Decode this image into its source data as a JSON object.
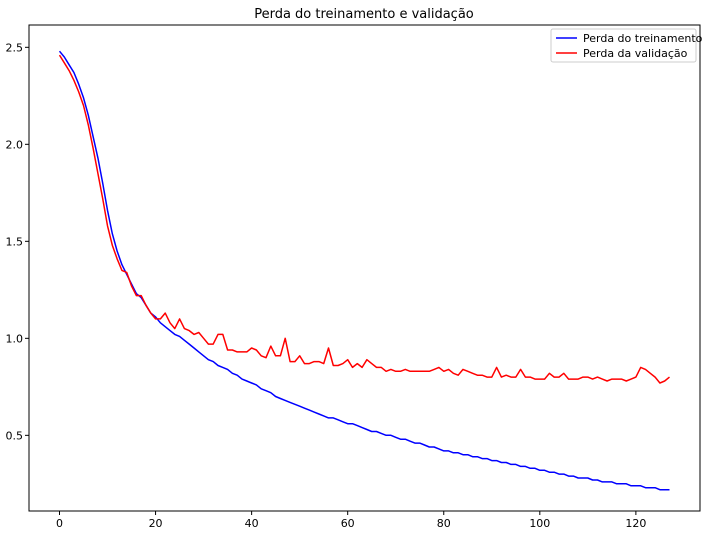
{
  "chart_data": {
    "type": "line",
    "title": "Perda do treinamento e validação",
    "xlabel": "",
    "ylabel": "",
    "xlim": [
      -6.35,
      133.35
    ],
    "ylim": [
      0.11,
      2.615
    ],
    "xticks": [
      0,
      20,
      40,
      60,
      80,
      100,
      120
    ],
    "yticks": [
      0.5,
      1.0,
      1.5,
      2.0,
      2.5
    ],
    "ytick_labels": [
      "0.5",
      "1.0",
      "1.5",
      "2.0",
      "2.5"
    ],
    "grid": false,
    "legend_position": "top-right",
    "series": [
      {
        "name": "Perda do treinamento",
        "color": "#0000ff",
        "x": [
          0,
          1,
          2,
          3,
          4,
          5,
          6,
          7,
          8,
          9,
          10,
          11,
          12,
          13,
          14,
          15,
          16,
          17,
          18,
          19,
          20,
          21,
          22,
          23,
          24,
          25,
          26,
          27,
          28,
          29,
          30,
          31,
          32,
          33,
          34,
          35,
          36,
          37,
          38,
          39,
          40,
          41,
          42,
          43,
          44,
          45,
          46,
          47,
          48,
          49,
          50,
          51,
          52,
          53,
          54,
          55,
          56,
          57,
          58,
          59,
          60,
          61,
          62,
          63,
          64,
          65,
          66,
          67,
          68,
          69,
          70,
          71,
          72,
          73,
          74,
          75,
          76,
          77,
          78,
          79,
          80,
          81,
          82,
          83,
          84,
          85,
          86,
          87,
          88,
          89,
          90,
          91,
          92,
          93,
          94,
          95,
          96,
          97,
          98,
          99,
          100,
          101,
          102,
          103,
          104,
          105,
          106,
          107,
          108,
          109,
          110,
          111,
          112,
          113,
          114,
          115,
          116,
          117,
          118,
          119,
          120,
          121,
          122,
          123,
          124,
          125,
          126,
          127
        ],
        "y": [
          2.48,
          2.45,
          2.41,
          2.37,
          2.31,
          2.24,
          2.15,
          2.04,
          1.93,
          1.8,
          1.66,
          1.54,
          1.45,
          1.38,
          1.33,
          1.28,
          1.23,
          1.21,
          1.17,
          1.13,
          1.11,
          1.08,
          1.06,
          1.04,
          1.02,
          1.01,
          0.99,
          0.97,
          0.95,
          0.93,
          0.91,
          0.89,
          0.88,
          0.86,
          0.85,
          0.84,
          0.82,
          0.81,
          0.79,
          0.78,
          0.77,
          0.76,
          0.74,
          0.73,
          0.72,
          0.7,
          0.69,
          0.68,
          0.67,
          0.66,
          0.65,
          0.64,
          0.63,
          0.62,
          0.61,
          0.6,
          0.59,
          0.59,
          0.58,
          0.57,
          0.56,
          0.56,
          0.55,
          0.54,
          0.53,
          0.52,
          0.52,
          0.51,
          0.5,
          0.5,
          0.49,
          0.48,
          0.48,
          0.47,
          0.46,
          0.46,
          0.45,
          0.44,
          0.44,
          0.43,
          0.42,
          0.42,
          0.41,
          0.41,
          0.4,
          0.4,
          0.39,
          0.39,
          0.38,
          0.38,
          0.37,
          0.37,
          0.36,
          0.36,
          0.35,
          0.35,
          0.34,
          0.34,
          0.33,
          0.33,
          0.32,
          0.32,
          0.31,
          0.31,
          0.3,
          0.3,
          0.29,
          0.29,
          0.28,
          0.28,
          0.28,
          0.27,
          0.27,
          0.26,
          0.26,
          0.26,
          0.25,
          0.25,
          0.25,
          0.24,
          0.24,
          0.24,
          0.23,
          0.23,
          0.23,
          0.22,
          0.22,
          0.22
        ]
      },
      {
        "name": "Perda da validação",
        "color": "#ff0000",
        "x": [
          0,
          1,
          2,
          3,
          4,
          5,
          6,
          7,
          8,
          9,
          10,
          11,
          12,
          13,
          14,
          15,
          16,
          17,
          18,
          19,
          20,
          21,
          22,
          23,
          24,
          25,
          26,
          27,
          28,
          29,
          30,
          31,
          32,
          33,
          34,
          35,
          36,
          37,
          38,
          39,
          40,
          41,
          42,
          43,
          44,
          45,
          46,
          47,
          48,
          49,
          50,
          51,
          52,
          53,
          54,
          55,
          56,
          57,
          58,
          59,
          60,
          61,
          62,
          63,
          64,
          65,
          66,
          67,
          68,
          69,
          70,
          71,
          72,
          73,
          74,
          75,
          76,
          77,
          78,
          79,
          80,
          81,
          82,
          83,
          84,
          85,
          86,
          87,
          88,
          89,
          90,
          91,
          92,
          93,
          94,
          95,
          96,
          97,
          98,
          99,
          100,
          101,
          102,
          103,
          104,
          105,
          106,
          107,
          108,
          109,
          110,
          111,
          112,
          113,
          114,
          115,
          116,
          117,
          118,
          119,
          120,
          121,
          122,
          123,
          124,
          125,
          126,
          127
        ],
        "y": [
          2.46,
          2.42,
          2.38,
          2.33,
          2.27,
          2.2,
          2.1,
          1.98,
          1.85,
          1.72,
          1.58,
          1.48,
          1.41,
          1.35,
          1.34,
          1.27,
          1.22,
          1.22,
          1.17,
          1.13,
          1.1,
          1.1,
          1.13,
          1.08,
          1.05,
          1.1,
          1.05,
          1.04,
          1.02,
          1.03,
          1.0,
          0.97,
          0.97,
          1.02,
          1.02,
          0.94,
          0.94,
          0.93,
          0.93,
          0.93,
          0.95,
          0.94,
          0.91,
          0.9,
          0.96,
          0.91,
          0.91,
          1.0,
          0.88,
          0.88,
          0.91,
          0.87,
          0.87,
          0.88,
          0.88,
          0.87,
          0.95,
          0.86,
          0.86,
          0.87,
          0.89,
          0.85,
          0.87,
          0.85,
          0.89,
          0.87,
          0.85,
          0.85,
          0.83,
          0.84,
          0.83,
          0.83,
          0.84,
          0.83,
          0.83,
          0.83,
          0.83,
          0.83,
          0.84,
          0.85,
          0.83,
          0.84,
          0.82,
          0.81,
          0.84,
          0.83,
          0.82,
          0.81,
          0.81,
          0.8,
          0.8,
          0.85,
          0.8,
          0.81,
          0.8,
          0.8,
          0.84,
          0.8,
          0.8,
          0.79,
          0.79,
          0.79,
          0.82,
          0.8,
          0.8,
          0.82,
          0.79,
          0.79,
          0.79,
          0.8,
          0.8,
          0.79,
          0.8,
          0.79,
          0.78,
          0.79,
          0.79,
          0.79,
          0.78,
          0.79,
          0.8,
          0.85,
          0.84,
          0.82,
          0.8,
          0.77,
          0.78,
          0.8
        ]
      }
    ]
  }
}
